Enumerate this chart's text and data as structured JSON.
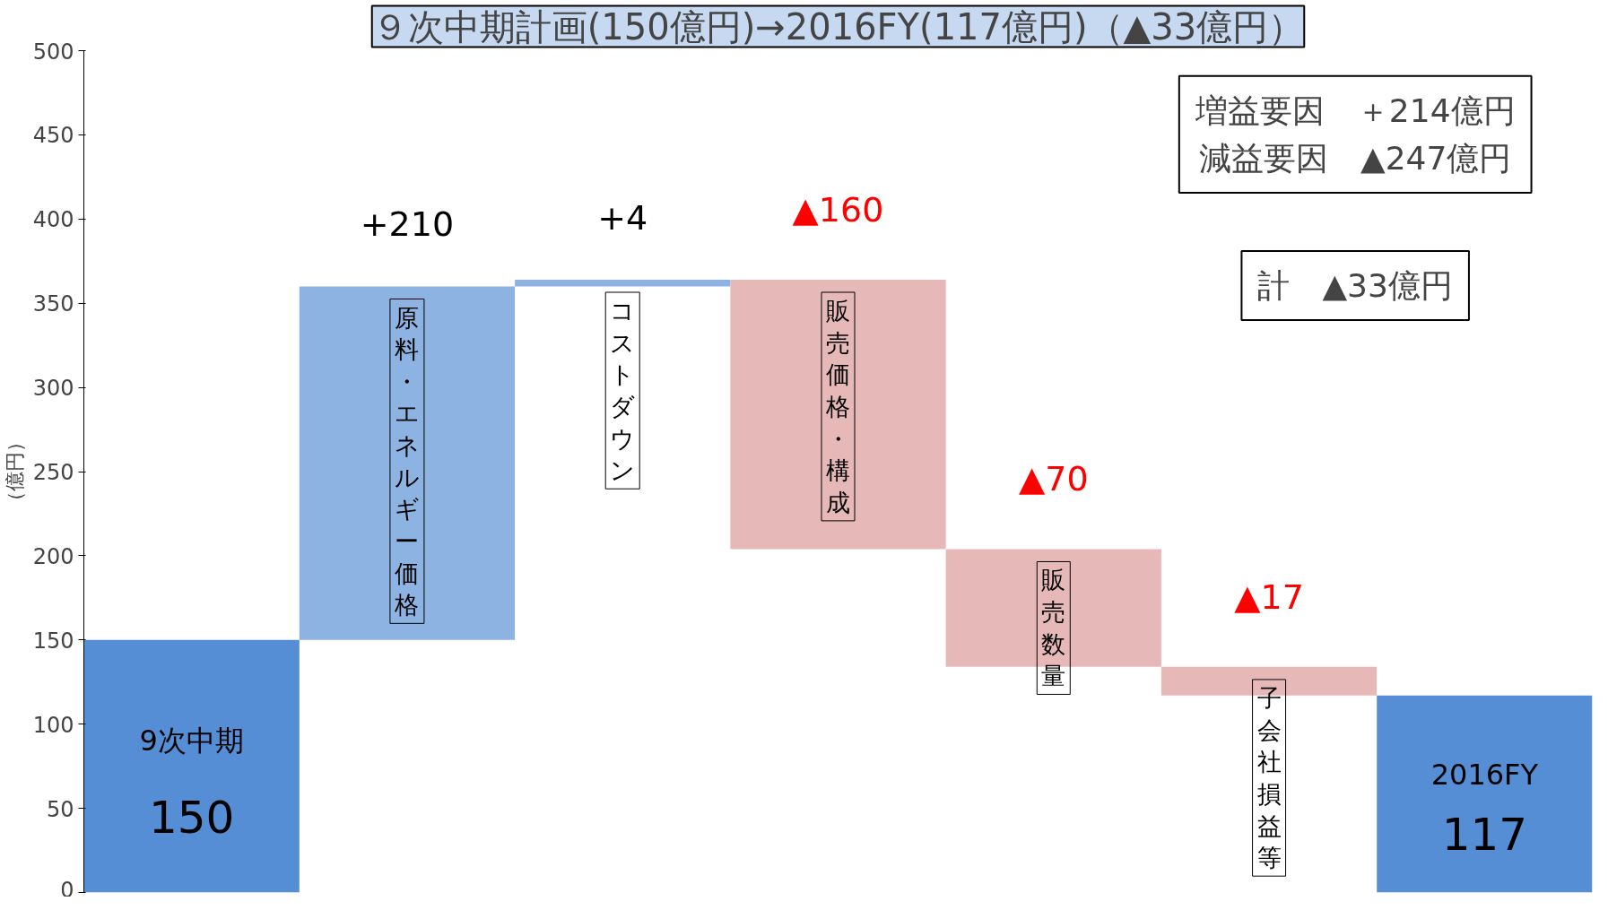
{
  "chart_data": {
    "type": "bar",
    "title": "９次中期計画(150億円)→2016FY(117億円)（▲33億円）",
    "ylabel": "（億円）",
    "categories": [
      "9次中期",
      "原料・エネルギー価格",
      "コストダウン",
      "販売価格・構成",
      "販売数量",
      "子会社損益等",
      "2016FY"
    ],
    "values": [
      150,
      210,
      4,
      -160,
      -70,
      -17,
      117
    ],
    "base": [
      0,
      150,
      360,
      364,
      204,
      134,
      0
    ],
    "colors": [
      "#558ed5",
      "#8db3e2",
      "#8db3e2",
      "#e6b9b8",
      "#e6b9b8",
      "#e6b9b8",
      "#558ed5"
    ],
    "value_labels": [
      "150",
      "+210",
      "+4",
      "▲160",
      "▲70",
      "▲17",
      "117"
    ],
    "ylim": [
      0,
      500
    ],
    "yticks": [
      0,
      50,
      100,
      150,
      200,
      250,
      300,
      350,
      400,
      450,
      500
    ],
    "grid": false,
    "annotations": [
      "増益要因　＋214億円",
      "減益要因　▲247億円",
      "計　▲33億円"
    ]
  }
}
